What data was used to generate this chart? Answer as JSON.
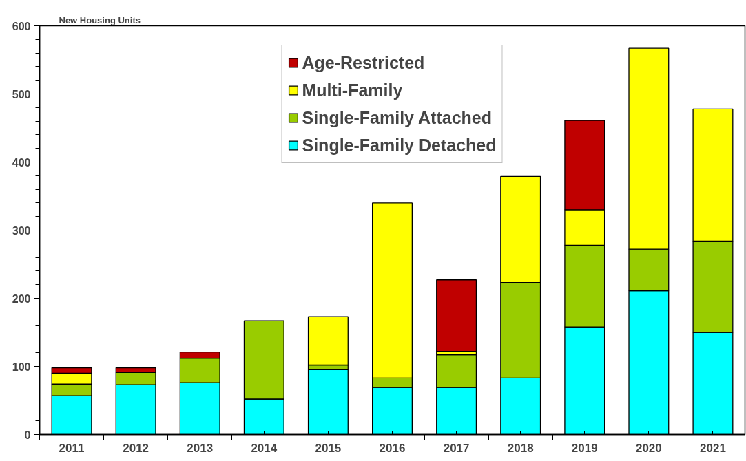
{
  "chart_data": {
    "type": "bar",
    "title": "New Housing Units",
    "stacked": true,
    "categories": [
      "2011",
      "2012",
      "2013",
      "2014",
      "2015",
      "2016",
      "2017",
      "2018",
      "2019",
      "2020",
      "2021"
    ],
    "series": [
      {
        "name": "Single-Family Detached",
        "color": "#00ffff",
        "values": [
          57,
          73,
          76,
          52,
          95,
          69,
          69,
          83,
          158,
          211,
          150
        ]
      },
      {
        "name": "Single-Family Attached",
        "color": "#99cc00",
        "values": [
          17,
          18,
          36,
          115,
          7,
          14,
          48,
          140,
          120,
          61,
          134
        ]
      },
      {
        "name": "Multi-Family",
        "color": "#ffff00",
        "values": [
          16,
          null,
          null,
          null,
          71,
          257,
          5,
          156,
          52,
          295,
          194
        ]
      },
      {
        "name": "Age-Restricted",
        "color": "#c00000",
        "values": [
          8,
          7,
          9,
          null,
          null,
          null,
          105,
          null,
          131,
          null,
          null
        ]
      }
    ],
    "ylim": [
      0,
      600
    ],
    "yticks": [
      0,
      100,
      200,
      300,
      400,
      500,
      600
    ],
    "grid": false,
    "legend": "top"
  }
}
